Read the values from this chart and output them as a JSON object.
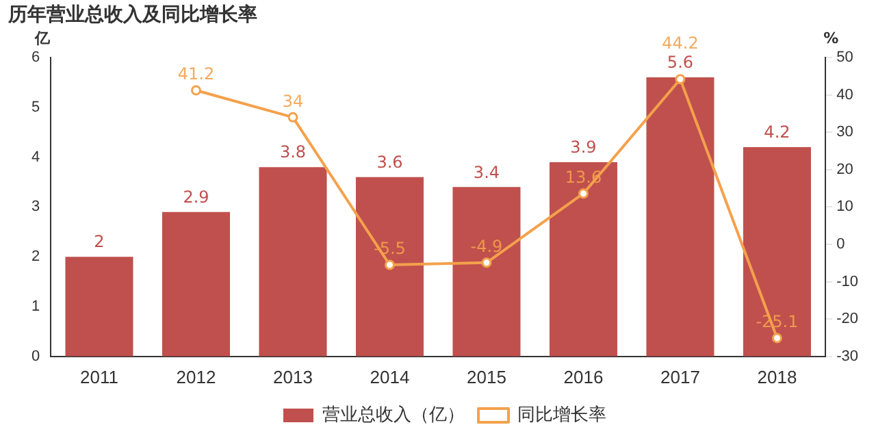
{
  "chart_data": {
    "type": "bar",
    "title": "历年营业总收入及同比增长率",
    "ylabel": "亿",
    "y2label": "%",
    "categories": [
      "2011",
      "2012",
      "2013",
      "2014",
      "2015",
      "2016",
      "2017",
      "2018"
    ],
    "series": [
      {
        "name": "营业总收入（亿）",
        "color": "#c0504d",
        "values": [
          2,
          2.9,
          3.8,
          3.6,
          3.4,
          3.9,
          5.6,
          4.2
        ]
      },
      {
        "name": "同比增长率",
        "type": "line",
        "axis": "y2",
        "color": "#f4a14c",
        "marker": "circle",
        "values": [
          null,
          41.2,
          34,
          -5.5,
          -4.9,
          13.6,
          44.2,
          -25.1
        ]
      }
    ],
    "ylim": [
      0,
      6
    ],
    "yticks": [
      0,
      1,
      2,
      3,
      4,
      5,
      6
    ],
    "y2lim": [
      -30,
      50
    ],
    "y2ticks": [
      -30,
      -20,
      -10,
      0,
      10,
      20,
      30,
      40,
      50
    ],
    "data_labels": true,
    "grid": false,
    "legend": "bottom"
  }
}
